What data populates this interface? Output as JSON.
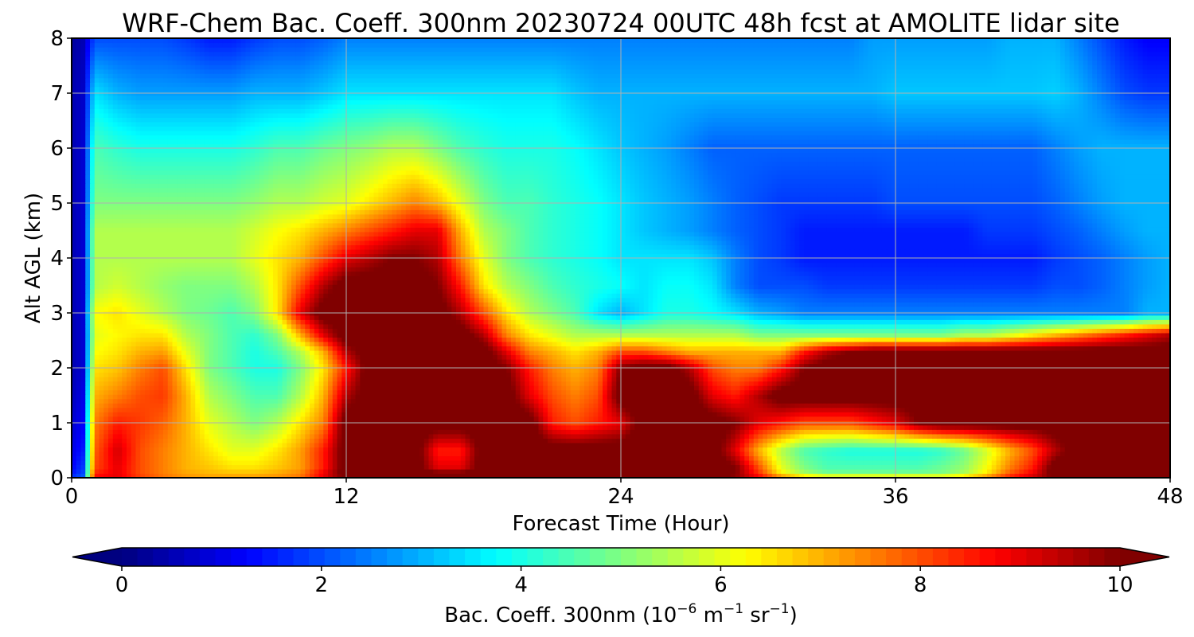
{
  "chart_data": {
    "type": "heatmap",
    "title": "WRF-Chem Bac. Coeff. 300nm  20230724 00UTC 48h fcst at AMOLITE lidar site",
    "xlabel": "Forecast Time (Hour)",
    "ylabel": "Alt AGL (km)",
    "xlim": [
      0,
      48
    ],
    "ylim": [
      0,
      8
    ],
    "xticks": [
      0,
      12,
      24,
      36,
      48
    ],
    "yticks": [
      0,
      1,
      2,
      3,
      4,
      5,
      6,
      7,
      8
    ],
    "grid": true,
    "colorbar": {
      "label_main": "Bac. Coeff. 300nm  (10",
      "label_exp1": "−6",
      "label_mid": " m",
      "label_exp2": "−1",
      "label_sr": " sr",
      "label_exp3": "−1",
      "label_close": ")",
      "range": [
        0,
        10
      ],
      "ticks": [
        0,
        2,
        4,
        6,
        8,
        10
      ],
      "extend": "both",
      "colormap": "jet"
    },
    "x": [
      0,
      0.5,
      1,
      2,
      3,
      4,
      5,
      6,
      7,
      8,
      9,
      10,
      11,
      12,
      13,
      14,
      15,
      16,
      17,
      18,
      19,
      20,
      21,
      22,
      23,
      24,
      25,
      26,
      27,
      28,
      29,
      30,
      31,
      32,
      33,
      34,
      35,
      36,
      37,
      38,
      39,
      40,
      41,
      42,
      43,
      44,
      45,
      46,
      47,
      48
    ],
    "y": [
      0,
      0.05,
      0.2,
      0.5,
      1,
      1.5,
      2,
      2.3,
      2.6,
      3,
      3.5,
      4,
      4.5,
      5,
      6,
      7,
      8
    ],
    "z": [
      [
        2.0,
        2.5,
        9.0,
        9.0,
        8.5,
        8.0,
        7.5,
        7.5,
        7.5,
        7.5,
        7.5,
        7.8,
        8.5,
        9.5,
        9.5,
        9.5,
        9.5,
        9.5,
        9.5,
        9.5,
        9.5,
        9.5,
        9.5,
        9.5,
        9.5,
        9.5,
        9.5,
        9.5,
        9.5,
        9.5,
        9.5,
        9.5,
        9.5,
        9.5,
        9.5,
        9.5,
        9.5,
        9.5,
        9.5,
        9.5,
        9.5,
        9.5,
        9.5,
        9.5,
        9.5,
        9.5,
        9.5,
        9.5,
        9.5,
        9.5
      ],
      [
        1.5,
        2.0,
        8.5,
        9.0,
        8.0,
        7.5,
        7.2,
        7.0,
        7.0,
        7.0,
        7.2,
        7.5,
        9.0,
        10.5,
        10.5,
        10.5,
        10.5,
        10.5,
        10.5,
        10.5,
        10.5,
        10.5,
        10.5,
        10.5,
        10.5,
        10.5,
        10.5,
        10.5,
        10.5,
        10.5,
        10.0,
        8.5,
        6.5,
        5.5,
        5.0,
        5.0,
        5.0,
        5.0,
        5.0,
        5.0,
        5.5,
        6.5,
        8.0,
        9.0,
        10.5,
        10.5,
        10.5,
        10.5,
        10.5,
        10.5
      ],
      [
        1.2,
        1.8,
        8.0,
        9.0,
        8.0,
        7.5,
        7.0,
        6.8,
        6.5,
        6.5,
        6.8,
        7.2,
        8.5,
        10.5,
        10.5,
        10.5,
        10.5,
        9.0,
        9.0,
        10.5,
        10.5,
        10.5,
        10.5,
        10.5,
        10.5,
        10.5,
        10.5,
        10.5,
        10.5,
        10.5,
        10.0,
        8.0,
        6.0,
        5.0,
        4.5,
        4.5,
        4.5,
        4.5,
        4.5,
        4.8,
        5.2,
        6.2,
        7.5,
        8.5,
        10.5,
        10.5,
        10.5,
        10.5,
        10.5,
        10.5
      ],
      [
        1.0,
        1.5,
        7.8,
        9.2,
        8.0,
        7.5,
        7.0,
        6.5,
        6.0,
        6.0,
        6.5,
        7.2,
        8.5,
        10.5,
        10.5,
        10.5,
        10.5,
        8.5,
        8.5,
        10.5,
        10.5,
        10.5,
        10.5,
        10.5,
        10.5,
        10.5,
        10.5,
        10.5,
        10.5,
        10.5,
        9.0,
        7.0,
        5.5,
        4.5,
        4.2,
        4.0,
        4.0,
        4.0,
        4.0,
        4.2,
        4.8,
        5.8,
        7.0,
        8.0,
        9.5,
        10.5,
        10.5,
        10.5,
        10.5,
        10.5
      ],
      [
        0.8,
        1.2,
        7.5,
        8.5,
        8.2,
        7.8,
        7.0,
        6.0,
        5.5,
        5.0,
        5.5,
        6.5,
        7.5,
        10.5,
        10.5,
        10.5,
        10.5,
        10.5,
        10.5,
        10.5,
        10.5,
        10.5,
        8.5,
        8.0,
        8.5,
        9.0,
        10.5,
        10.5,
        10.5,
        10.5,
        10.0,
        9.0,
        8.5,
        8.0,
        8.0,
        8.0,
        8.5,
        9.0,
        10.0,
        10.5,
        10.5,
        10.5,
        10.5,
        10.5,
        10.5,
        10.5,
        10.5,
        10.5,
        10.5,
        10.5
      ],
      [
        0.6,
        1.0,
        7.0,
        7.5,
        8.0,
        8.2,
        7.0,
        5.5,
        5.0,
        4.5,
        4.5,
        5.5,
        7.0,
        9.5,
        10.5,
        10.5,
        10.5,
        10.5,
        10.5,
        10.5,
        10.5,
        9.0,
        8.0,
        7.5,
        8.0,
        10.5,
        10.5,
        10.5,
        10.5,
        9.0,
        8.5,
        9.5,
        10.5,
        10.5,
        10.5,
        10.5,
        10.5,
        10.5,
        10.5,
        10.5,
        10.5,
        10.5,
        10.5,
        10.5,
        10.5,
        10.5,
        10.5,
        10.5,
        10.5,
        10.5
      ],
      [
        0.5,
        0.8,
        6.5,
        6.8,
        7.5,
        8.0,
        6.5,
        5.0,
        4.5,
        4.0,
        4.0,
        5.0,
        6.5,
        8.5,
        10.5,
        10.5,
        10.5,
        10.5,
        10.5,
        10.5,
        10.0,
        8.5,
        7.5,
        7.0,
        7.5,
        10.0,
        10.5,
        10.5,
        9.5,
        8.0,
        7.5,
        7.5,
        8.5,
        10.0,
        10.5,
        10.5,
        10.5,
        10.5,
        10.5,
        10.5,
        10.5,
        10.5,
        10.5,
        10.5,
        10.5,
        10.5,
        10.5,
        10.5,
        10.5,
        10.5
      ],
      [
        0.5,
        0.8,
        6.2,
        6.5,
        7.0,
        7.2,
        6.0,
        5.0,
        4.5,
        4.0,
        4.5,
        5.5,
        7.0,
        9.5,
        10.5,
        10.5,
        10.5,
        10.5,
        10.5,
        10.5,
        9.0,
        7.5,
        7.0,
        6.5,
        7.0,
        8.0,
        8.0,
        7.5,
        7.0,
        7.0,
        7.0,
        7.0,
        7.0,
        8.5,
        9.5,
        10.0,
        10.5,
        10.5,
        10.5,
        10.5,
        10.5,
        10.5,
        10.5,
        10.5,
        10.5,
        10.5,
        10.5,
        10.5,
        10.5,
        10.5
      ],
      [
        0.5,
        0.8,
        6.0,
        6.3,
        6.5,
        6.5,
        5.5,
        5.0,
        4.5,
        4.2,
        5.0,
        7.0,
        9.0,
        10.5,
        10.5,
        10.5,
        10.5,
        10.5,
        10.5,
        9.5,
        7.5,
        6.5,
        6.0,
        5.5,
        5.5,
        5.5,
        5.5,
        5.5,
        5.5,
        5.5,
        5.5,
        5.0,
        5.0,
        5.0,
        5.0,
        5.0,
        5.0,
        5.0,
        5.0,
        5.0,
        5.5,
        5.5,
        6.0,
        6.5,
        7.0,
        7.5,
        8.0,
        8.5,
        9.0,
        9.5
      ],
      [
        0.5,
        0.8,
        6.2,
        6.5,
        6.0,
        5.5,
        5.0,
        4.8,
        4.5,
        5.0,
        6.5,
        9.0,
        10.5,
        10.5,
        10.5,
        10.5,
        10.5,
        10.5,
        9.5,
        8.0,
        6.5,
        5.5,
        5.0,
        4.5,
        3.5,
        3.0,
        3.5,
        4.0,
        4.0,
        3.8,
        3.5,
        3.0,
        2.8,
        2.5,
        2.5,
        2.5,
        2.5,
        2.5,
        2.5,
        2.5,
        2.5,
        2.5,
        2.5,
        2.5,
        2.5,
        2.5,
        2.5,
        2.5,
        3.0,
        3.0
      ],
      [
        0.5,
        0.8,
        5.5,
        5.8,
        5.5,
        5.2,
        5.0,
        5.0,
        5.0,
        5.5,
        6.5,
        8.0,
        9.5,
        10.5,
        10.5,
        10.5,
        10.5,
        10.0,
        8.5,
        6.5,
        5.5,
        5.0,
        4.5,
        4.2,
        4.0,
        3.8,
        3.5,
        3.8,
        3.8,
        3.5,
        2.5,
        2.0,
        2.0,
        2.0,
        1.8,
        1.8,
        1.8,
        1.8,
        1.8,
        1.8,
        1.8,
        1.8,
        1.8,
        1.8,
        2.0,
        2.0,
        2.2,
        2.5,
        2.8,
        3.0
      ],
      [
        0.5,
        0.8,
        5.5,
        5.5,
        5.5,
        5.5,
        5.5,
        5.5,
        5.5,
        6.0,
        6.5,
        7.0,
        8.0,
        9.0,
        9.5,
        10.0,
        10.0,
        9.5,
        7.5,
        6.0,
        5.0,
        4.5,
        4.2,
        4.0,
        3.8,
        3.5,
        3.5,
        3.5,
        3.5,
        3.2,
        2.5,
        2.0,
        1.8,
        1.5,
        1.5,
        1.5,
        1.5,
        1.5,
        1.5,
        1.5,
        1.5,
        1.5,
        1.5,
        1.5,
        1.8,
        2.0,
        2.2,
        2.5,
        2.8,
        3.0
      ],
      [
        0.5,
        0.8,
        5.5,
        5.5,
        5.5,
        5.5,
        5.5,
        5.5,
        5.5,
        5.8,
        6.2,
        6.5,
        7.0,
        7.5,
        8.0,
        8.5,
        9.0,
        9.0,
        7.0,
        5.5,
        5.0,
        4.5,
        4.2,
        4.0,
        3.8,
        3.5,
        3.2,
        3.0,
        2.8,
        2.5,
        2.2,
        2.0,
        1.8,
        1.5,
        1.5,
        1.5,
        1.5,
        1.5,
        1.5,
        1.5,
        1.5,
        1.8,
        1.8,
        1.8,
        2.0,
        2.2,
        2.5,
        2.8,
        3.0,
        3.0
      ],
      [
        0.5,
        0.8,
        5.0,
        5.0,
        5.0,
        5.0,
        5.0,
        5.0,
        5.0,
        5.2,
        5.5,
        5.5,
        5.8,
        6.0,
        6.5,
        7.0,
        7.5,
        7.0,
        6.0,
        5.0,
        4.5,
        4.5,
        4.2,
        4.0,
        3.8,
        3.5,
        3.2,
        3.0,
        2.8,
        2.5,
        2.2,
        2.0,
        1.8,
        1.8,
        1.8,
        1.8,
        1.8,
        2.0,
        2.0,
        2.0,
        2.0,
        2.0,
        2.0,
        2.0,
        2.2,
        2.5,
        2.8,
        3.0,
        3.0,
        3.0
      ],
      [
        0.5,
        0.8,
        4.5,
        4.2,
        4.0,
        4.0,
        4.0,
        4.0,
        4.0,
        4.2,
        4.5,
        4.5,
        4.8,
        5.0,
        5.2,
        5.5,
        5.5,
        5.0,
        4.5,
        4.2,
        4.0,
        4.0,
        4.0,
        3.8,
        3.5,
        3.2,
        3.0,
        2.8,
        2.5,
        2.2,
        2.2,
        2.2,
        2.2,
        2.2,
        2.2,
        2.2,
        2.2,
        2.2,
        2.2,
        2.2,
        2.2,
        2.2,
        2.2,
        2.2,
        2.5,
        2.8,
        3.0,
        3.0,
        3.0,
        3.0
      ],
      [
        0.5,
        0.7,
        3.5,
        3.0,
        2.8,
        2.8,
        2.8,
        2.8,
        2.8,
        3.0,
        3.0,
        3.0,
        3.2,
        3.5,
        3.5,
        3.5,
        3.5,
        3.5,
        3.5,
        3.5,
        3.5,
        3.5,
        3.5,
        3.2,
        3.0,
        3.0,
        3.0,
        3.0,
        3.0,
        3.0,
        3.0,
        3.0,
        3.0,
        3.0,
        3.0,
        3.0,
        3.0,
        3.2,
        3.2,
        3.2,
        3.2,
        3.2,
        3.2,
        3.2,
        3.3,
        3.0,
        2.5,
        2.0,
        1.8,
        1.8
      ],
      [
        0.3,
        0.5,
        2.0,
        2.0,
        2.0,
        2.0,
        1.8,
        1.5,
        1.5,
        1.8,
        2.0,
        2.0,
        2.2,
        2.5,
        2.5,
        2.5,
        2.5,
        2.5,
        2.5,
        2.5,
        2.5,
        2.5,
        2.5,
        2.5,
        2.5,
        2.5,
        2.5,
        2.5,
        2.5,
        2.5,
        2.5,
        2.5,
        2.5,
        2.5,
        2.5,
        2.5,
        2.8,
        2.8,
        2.8,
        2.8,
        2.8,
        2.8,
        3.0,
        3.0,
        3.0,
        2.5,
        2.0,
        1.5,
        1.2,
        1.2
      ]
    ]
  }
}
